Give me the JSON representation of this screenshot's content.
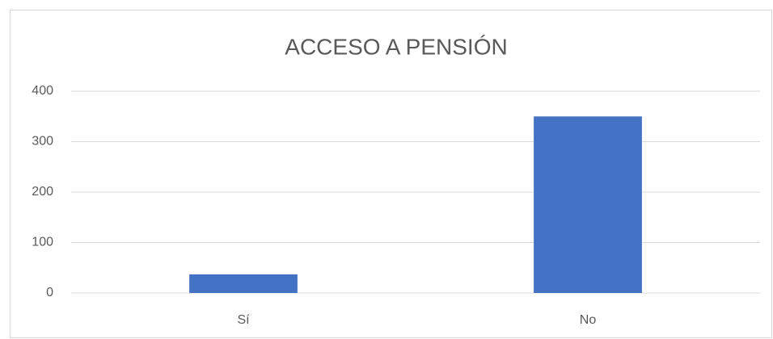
{
  "chart_data": {
    "type": "bar",
    "title": "ACCESO A PENSIÓN",
    "categories": [
      "Sí",
      "No"
    ],
    "values": [
      37,
      350
    ],
    "color": "#4472c4",
    "ylim": [
      0,
      400
    ],
    "yticks": [
      0,
      100,
      200,
      300,
      400
    ],
    "grid": true
  }
}
